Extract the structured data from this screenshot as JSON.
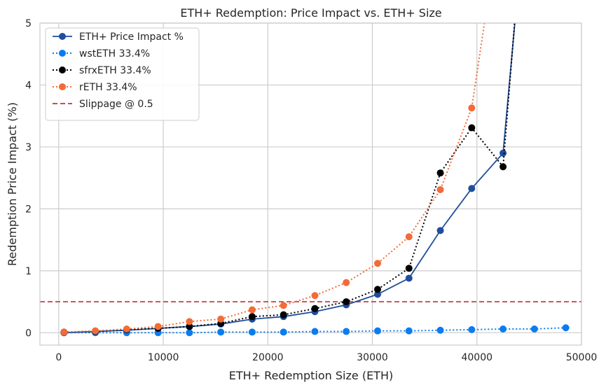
{
  "chart_data": {
    "type": "line",
    "title": "ETH+ Redemption: Price Impact vs. ETH+ Size",
    "xlabel": "ETH+ Redemption Size (ETH)",
    "ylabel": "Redemption Price Impact (%)",
    "xlim": [
      -1800,
      50000
    ],
    "ylim": [
      -0.2,
      5
    ],
    "xticks": [
      0,
      10000,
      20000,
      30000,
      40000,
      50000
    ],
    "yticks": [
      0,
      1,
      2,
      3,
      4,
      5
    ],
    "grid": true,
    "legend_position": "top-left",
    "series": [
      {
        "name": "ETH+ Price Impact %",
        "color": "#1f4e9c",
        "style": "solid",
        "x": [
          500,
          3500,
          6500,
          9500,
          12500,
          15500,
          18500,
          21500,
          24500,
          27500,
          30500,
          33500,
          36500,
          39500,
          42500,
          45500
        ],
        "y": [
          0.0,
          0.02,
          0.04,
          0.07,
          0.1,
          0.14,
          0.22,
          0.26,
          0.34,
          0.45,
          0.62,
          0.88,
          1.65,
          2.33,
          2.9,
          8.5
        ]
      },
      {
        "name": "wstETH 33.4%",
        "color": "#0a7cf2",
        "style": "dotted",
        "x": [
          500,
          3500,
          6500,
          9500,
          12500,
          15500,
          18500,
          21500,
          24500,
          27500,
          30500,
          33500,
          36500,
          39500,
          42500,
          45500,
          48500
        ],
        "y": [
          0.0,
          0.0,
          0.0,
          0.0,
          0.0,
          0.01,
          0.01,
          0.01,
          0.02,
          0.02,
          0.03,
          0.03,
          0.04,
          0.05,
          0.06,
          0.06,
          0.08
        ]
      },
      {
        "name": "sfrxETH 33.4%",
        "color": "#000000",
        "style": "dotted",
        "x": [
          500,
          3500,
          6500,
          9500,
          12500,
          15500,
          18500,
          21500,
          24500,
          27500,
          30500,
          33500,
          36500,
          39500,
          42500,
          45500
        ],
        "y": [
          0.01,
          0.02,
          0.05,
          0.07,
          0.1,
          0.15,
          0.26,
          0.29,
          0.39,
          0.5,
          0.7,
          1.04,
          2.58,
          3.31,
          2.68,
          9.0
        ]
      },
      {
        "name": "rETH 33.4%",
        "color": "#f26b38",
        "style": "dotted",
        "x": [
          500,
          3500,
          6500,
          9500,
          12500,
          15500,
          18500,
          21500,
          24500,
          27500,
          30500,
          33500,
          36500,
          39500,
          42500
        ],
        "y": [
          0.01,
          0.03,
          0.06,
          0.1,
          0.18,
          0.22,
          0.37,
          0.44,
          0.6,
          0.81,
          1.12,
          1.55,
          2.31,
          3.63,
          7.0
        ]
      }
    ],
    "reference_lines": [
      {
        "name": "Slippage @ 0.5",
        "y": 0.5,
        "color": "#c44e52",
        "style": "dashed"
      }
    ]
  }
}
